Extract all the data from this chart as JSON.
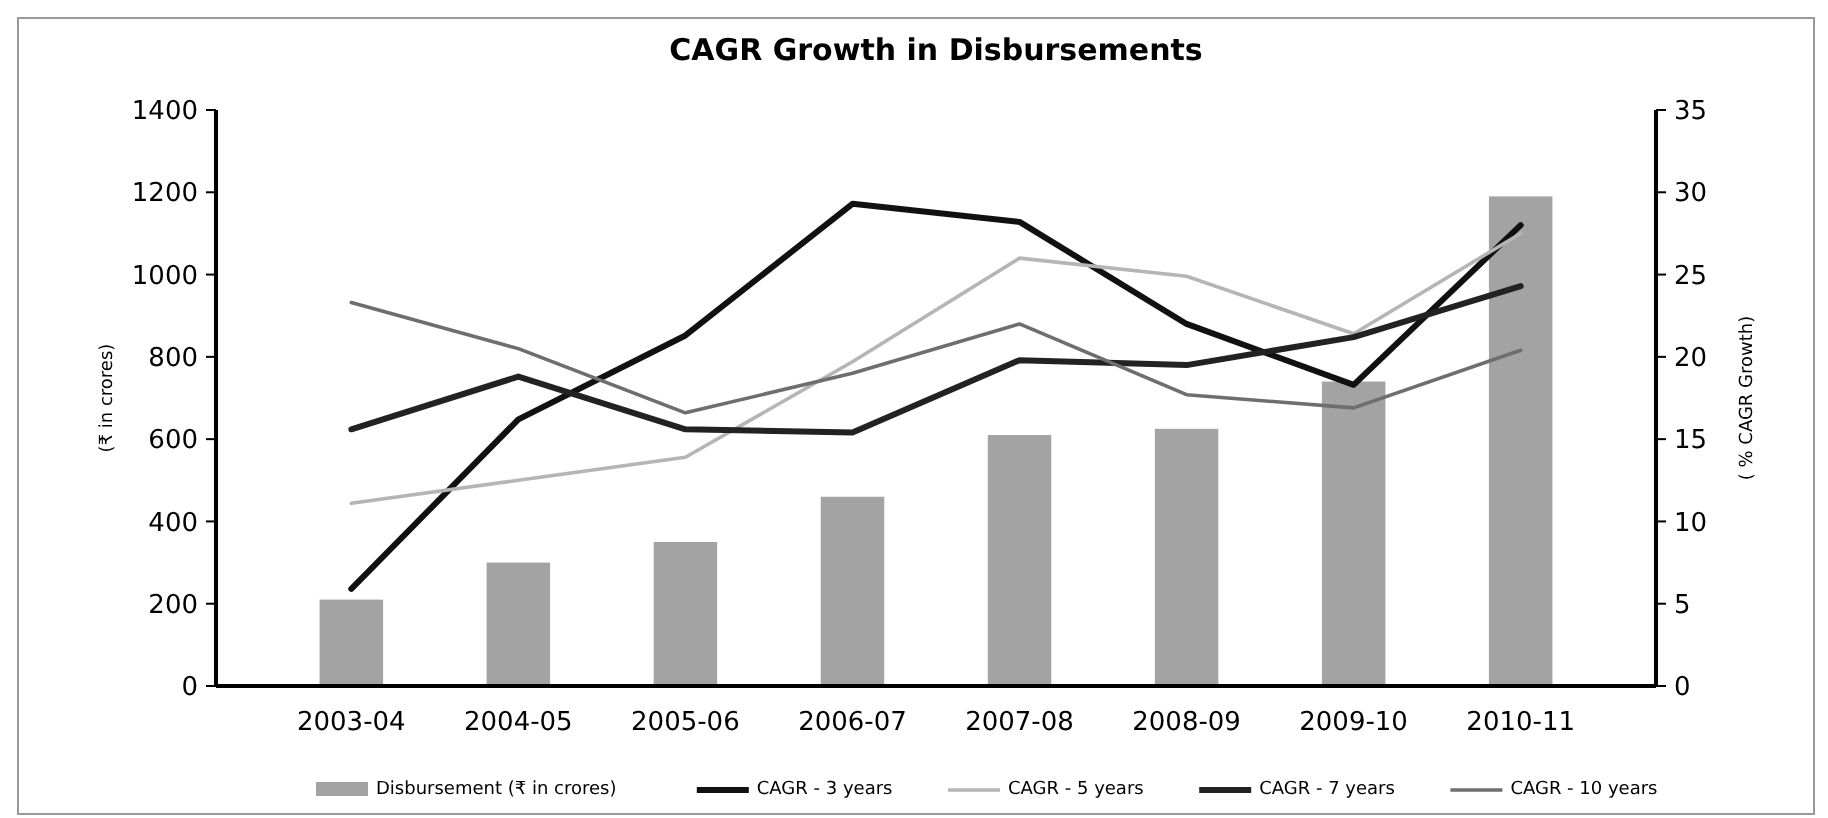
{
  "chart_data": {
    "type": "bar",
    "title": "CAGR Growth in Disbursements",
    "ylabel": "(₹ in crores)",
    "y2label": "( % CAGR Growth)",
    "categories": [
      "2003-04",
      "2004-05",
      "2005-06",
      "2006-07",
      "2007-08",
      "2008-09",
      "2009-10",
      "2010-11"
    ],
    "series": [
      {
        "name": "Disbursement (₹ in crores)",
        "color": "#a3a3a3",
        "values": [
          210,
          300,
          350,
          460,
          610,
          625,
          740,
          1190
        ]
      },
      {
        "name": "CAGR - 3 years",
        "type": "line",
        "axis": "y2",
        "color": "#111111",
        "values": [
          5.9,
          16.2,
          21.3,
          29.3,
          28.2,
          22.0,
          18.3,
          28.0
        ]
      },
      {
        "name": "CAGR - 5 years",
        "type": "line",
        "axis": "y2",
        "color": "#b5b5b5",
        "values": [
          11.1,
          12.5,
          13.9,
          19.7,
          26.0,
          24.9,
          21.4,
          27.5
        ]
      },
      {
        "name": "CAGR - 7 years",
        "type": "line",
        "axis": "y2",
        "color": "#222222",
        "values": [
          15.6,
          18.8,
          15.6,
          15.4,
          19.8,
          19.5,
          21.2,
          24.3
        ]
      },
      {
        "name": "CAGR - 10 years",
        "type": "line",
        "axis": "y2",
        "color": "#6e6e6e",
        "values": [
          23.3,
          20.5,
          16.6,
          19.0,
          22.0,
          17.7,
          16.9,
          20.4
        ]
      }
    ],
    "ylim": [
      0,
      1400
    ],
    "yticks": [
      0,
      200,
      400,
      600,
      800,
      1000,
      1200,
      1400
    ],
    "y2lim": [
      0,
      35
    ],
    "y2ticks": [
      0,
      5,
      10,
      15,
      20,
      25,
      30,
      35
    ],
    "grid": false,
    "legend": "bottom",
    "marker": "none",
    "line_style": "solid"
  }
}
